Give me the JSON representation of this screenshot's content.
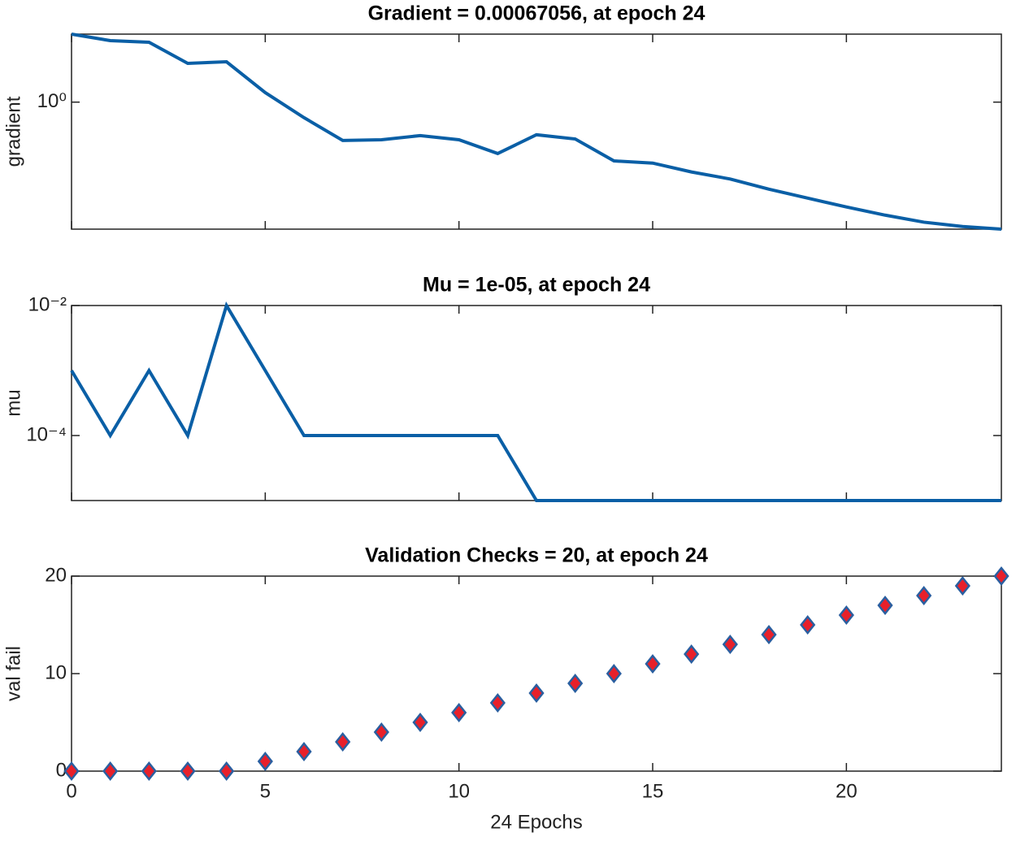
{
  "chart_data": [
    {
      "type": "line",
      "title": "Gradient = 0.00067056, at epoch 24",
      "ylabel": "gradient",
      "x": [
        0,
        1,
        2,
        3,
        4,
        5,
        6,
        7,
        8,
        9,
        10,
        11,
        12,
        13,
        14,
        15,
        16,
        17,
        18,
        19,
        20,
        21,
        22,
        23,
        24
      ],
      "series": [
        {
          "name": "gradient",
          "color": "#0a5fa6",
          "values": [
            50,
            34.4,
            31.3,
            9.3,
            10.2,
            1.73,
            0.41,
            0.11,
            0.115,
            0.146,
            0.115,
            0.052,
            0.153,
            0.12,
            0.034,
            0.03,
            0.018,
            0.012,
            0.0067,
            0.004,
            0.0024,
            0.0015,
            0.001,
            0.00078,
            0.00067056
          ]
        }
      ],
      "xlim": [
        0,
        24
      ],
      "ylim": [
        0.00067056,
        50
      ],
      "log_y": true,
      "yticks": [
        {
          "value": 1,
          "label": "10⁰"
        }
      ]
    },
    {
      "type": "line",
      "title": "Mu = 1e-05, at epoch 24",
      "ylabel": "mu",
      "x": [
        0,
        1,
        2,
        3,
        4,
        5,
        6,
        7,
        8,
        9,
        10,
        11,
        12,
        13,
        14,
        15,
        16,
        17,
        18,
        19,
        20,
        21,
        22,
        23,
        24
      ],
      "series": [
        {
          "name": "mu",
          "color": "#0a5fa6",
          "values": [
            0.001,
            0.0001,
            0.001,
            0.0001,
            0.01,
            0.001,
            0.0001,
            0.0001,
            0.0001,
            0.0001,
            0.0001,
            0.0001,
            1e-05,
            1e-05,
            1e-05,
            1e-05,
            1e-05,
            1e-05,
            1e-05,
            1e-05,
            1e-05,
            1e-05,
            1e-05,
            1e-05,
            1e-05
          ]
        }
      ],
      "xlim": [
        0,
        24
      ],
      "ylim": [
        1e-05,
        0.01
      ],
      "log_y": true,
      "yticks": [
        {
          "value": 0.01,
          "label": "10⁻²"
        },
        {
          "value": 0.0001,
          "label": "10⁻⁴"
        }
      ]
    },
    {
      "type": "scatter",
      "title": "Validation Checks = 20, at epoch 24",
      "ylabel": "val fail",
      "xlabel": "24 Epochs",
      "x": [
        0,
        1,
        2,
        3,
        4,
        5,
        6,
        7,
        8,
        9,
        10,
        11,
        12,
        13,
        14,
        15,
        16,
        17,
        18,
        19,
        20,
        21,
        22,
        23,
        24
      ],
      "series": [
        {
          "name": "val fail",
          "color": "#e8202a",
          "edge_color": "#2a5fa0",
          "values": [
            0,
            0,
            0,
            0,
            0,
            1,
            2,
            3,
            4,
            5,
            6,
            7,
            8,
            9,
            10,
            11,
            12,
            13,
            14,
            15,
            16,
            17,
            18,
            19,
            20
          ]
        }
      ],
      "xlim": [
        0,
        24
      ],
      "ylim": [
        0,
        20
      ],
      "log_y": false,
      "xticks": [
        0,
        5,
        10,
        15,
        20
      ],
      "yticks": [
        0,
        10,
        20
      ]
    }
  ]
}
